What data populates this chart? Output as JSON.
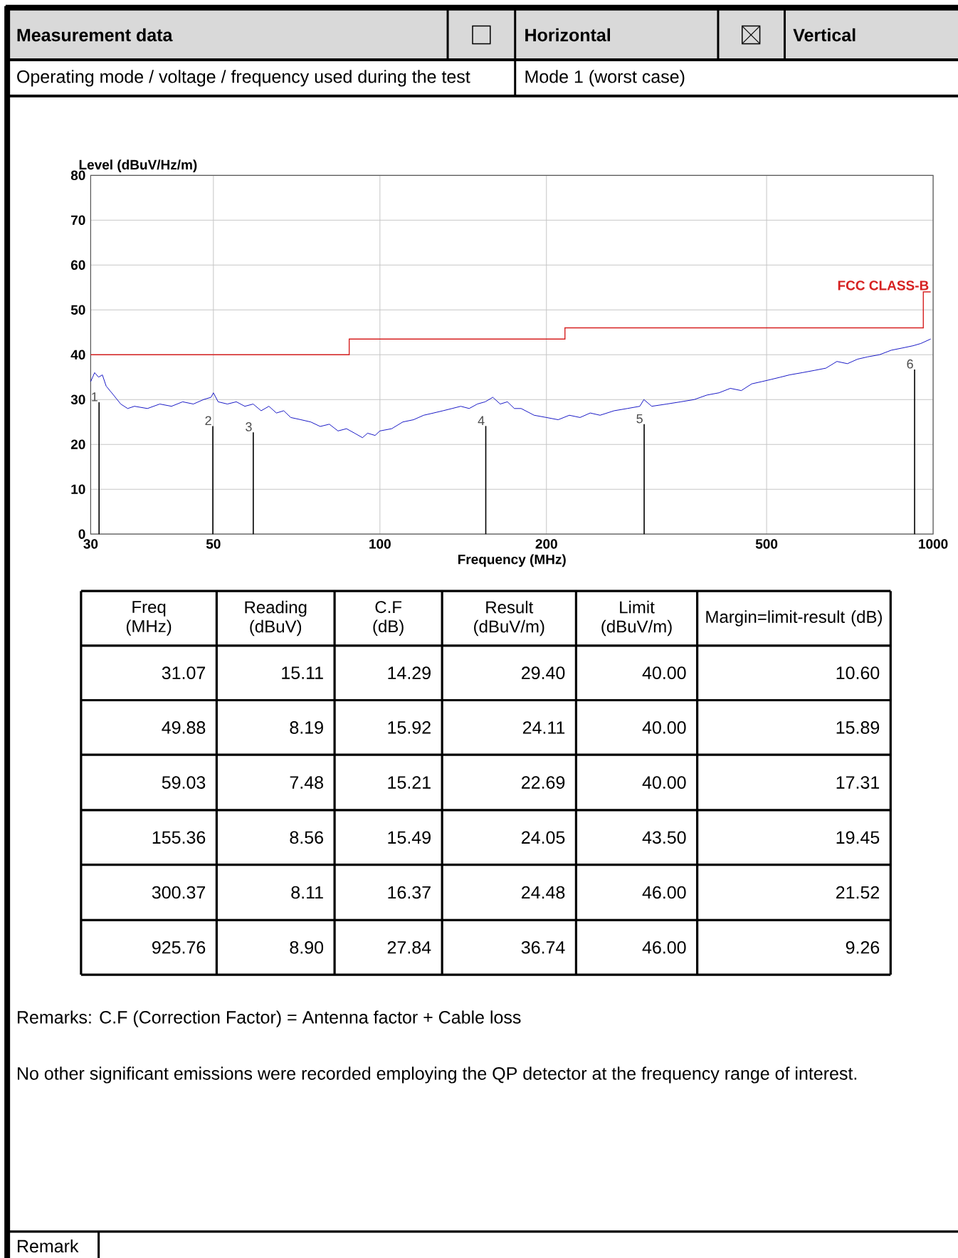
{
  "chart_data": [
    {
      "type": "line",
      "annotations": [
        "Measurement data",
        "Horizontal",
        "Vertical",
        "Operating mode / voltage / frequency used during the test",
        "Mode 1 (worst case)",
        {
          "text": "1",
          "x": 31.07,
          "y": 29.4
        },
        {
          "text": "2",
          "x": 49.88,
          "y": 24.1
        },
        {
          "text": "3",
          "x": 59.03,
          "y": 22.7
        },
        {
          "text": "4",
          "x": 155.36,
          "y": 24.1
        },
        {
          "text": "5",
          "x": 300.37,
          "y": 24.5
        },
        {
          "text": "6",
          "x": 925.76,
          "y": 36.7
        }
      ],
      "xlabel": "Frequency (MHz)",
      "ylabel": "Level (dBuV/Hz/m)",
      "log": "x",
      "grid": true,
      "xlim": [
        30,
        1000
      ],
      "ylim": [
        0,
        80
      ],
      "xticks": [
        30,
        50,
        100,
        200,
        500,
        1000
      ],
      "yticks": [
        0,
        10,
        20,
        30,
        40,
        50,
        60,
        70,
        80
      ],
      "series": [
        {
          "type": "line",
          "color": "#0000c0",
          "x": [
            30,
            30.5,
            31,
            31.5,
            32,
            33,
            34,
            35,
            36,
            38,
            40,
            42,
            44,
            46,
            48,
            49.5,
            50,
            51,
            53,
            55,
            57,
            59,
            61,
            63,
            65,
            67,
            69,
            72,
            75,
            78,
            81,
            84,
            87,
            90,
            93,
            95,
            98,
            100,
            105,
            110,
            115,
            120,
            125,
            130,
            135,
            140,
            145,
            150,
            155,
            160,
            165,
            170,
            175,
            180,
            190,
            200,
            210,
            220,
            230,
            240,
            250,
            265,
            280,
            295,
            300,
            310,
            330,
            350,
            370,
            390,
            410,
            430,
            450,
            470,
            490,
            510,
            530,
            550,
            580,
            610,
            640,
            670,
            700,
            730,
            760,
            800,
            840,
            880,
            920,
            950,
            990
          ],
          "values": [
            34,
            36,
            35,
            35.5,
            33,
            31,
            29,
            28,
            28.5,
            28,
            29,
            28.5,
            29.5,
            29,
            30,
            30.5,
            31.5,
            29.5,
            29,
            29.5,
            28.5,
            29,
            27.5,
            28.5,
            27,
            27.5,
            26,
            25.5,
            25,
            24,
            24.5,
            23,
            23.5,
            22.5,
            21.5,
            22.5,
            22,
            23,
            23.5,
            25,
            25.5,
            26.5,
            27,
            27.5,
            28,
            28.5,
            28,
            29,
            29.5,
            30.5,
            29,
            29.5,
            28,
            28,
            26.5,
            26,
            25.5,
            26.5,
            26,
            27,
            26.5,
            27.5,
            28,
            28.5,
            30,
            28.5,
            29,
            29.5,
            30,
            31,
            31.5,
            32.5,
            32,
            33.5,
            34,
            34.5,
            35,
            35.5,
            36,
            36.5,
            37,
            38.5,
            38,
            39,
            39.5,
            40,
            41,
            41.5,
            42,
            42.5,
            43.5
          ]
        },
        {
          "type": "step",
          "name": "FCC CLASS-B",
          "color": "#d62020",
          "x": [
            30,
            88,
            216,
            960,
            990
          ],
          "values": [
            40,
            43.5,
            46,
            54,
            54
          ]
        },
        {
          "type": "bar",
          "color": "#000000",
          "x": [
            31.07,
            49.88,
            59.03,
            155.36,
            300.37,
            925.76
          ],
          "values": [
            29.4,
            24.1,
            22.7,
            24.1,
            24.5,
            36.7
          ]
        }
      ]
    },
    {
      "type": "other",
      "categories": [
        "Freq (MHz)",
        "Reading (dBuV)",
        "C.F (dB)",
        "Result (dBuV/m)",
        "Limit (dBuV/m)",
        "Margin=limit-result (dB)"
      ],
      "series": [
        {
          "values": [
            31.07,
            15.11,
            14.29,
            29.4,
            40,
            10.6
          ],
          "value_labels": [
            "31.07",
            "15.11",
            "14.29",
            "29.40",
            "40.00",
            "10.60"
          ]
        },
        {
          "values": [
            49.88,
            8.19,
            15.92,
            24.11,
            40,
            15.89
          ],
          "value_labels": [
            "49.88",
            "8.19",
            "15.92",
            "24.11",
            "40.00",
            "15.89"
          ]
        },
        {
          "values": [
            59.03,
            7.48,
            15.21,
            22.69,
            40,
            17.31
          ],
          "value_labels": [
            "59.03",
            "7.48",
            "15.21",
            "22.69",
            "40.00",
            "17.31"
          ]
        },
        {
          "values": [
            155.36,
            8.56,
            15.49,
            24.05,
            43.5,
            19.45
          ],
          "value_labels": [
            "155.36",
            "8.56",
            "15.49",
            "24.05",
            "43.50",
            "19.45"
          ]
        },
        {
          "values": [
            300.37,
            8.11,
            16.37,
            24.48,
            46,
            21.52
          ],
          "value_labels": [
            "300.37",
            "8.11",
            "16.37",
            "24.48",
            "46.00",
            "21.52"
          ]
        },
        {
          "values": [
            925.76,
            8.9,
            27.84,
            36.74,
            46,
            9.26
          ],
          "value_labels": [
            "925.76",
            "8.90",
            "27.84",
            "36.74",
            "46.00",
            "9.26"
          ]
        }
      ],
      "annotations": [
        "Remarks:  C.F (Correction Factor) = Antenna factor + Cable loss",
        "No other significant emissions were recorded employing the QP detector at the frequency range of interest.",
        "Remark"
      ]
    }
  ]
}
